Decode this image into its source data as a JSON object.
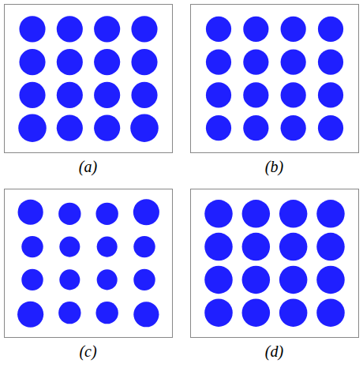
{
  "chart_data": [
    {
      "type": "scatter",
      "title": "(a)",
      "color": "#0000ff",
      "tick_labels": false,
      "xlim": [
        -4.5,
        4.5
      ],
      "ylim": [
        -4.5,
        4.5
      ],
      "x": [
        -3,
        -1,
        1,
        3,
        -3,
        -1,
        1,
        3,
        -3,
        -1,
        1,
        3,
        -3,
        -1,
        1,
        3
      ],
      "y": [
        3,
        3,
        3,
        3,
        1,
        1,
        1,
        1,
        -1,
        -1,
        -1,
        -1,
        -3,
        -3,
        -3,
        -3
      ],
      "spread": [
        0.7,
        0.7,
        0.7,
        0.7,
        0.7,
        0.7,
        0.7,
        0.7,
        0.7,
        0.7,
        0.7,
        0.7,
        0.75,
        0.7,
        0.7,
        0.75
      ]
    },
    {
      "type": "scatter",
      "title": "(b)",
      "color": "#0000ff",
      "tick_labels": false,
      "xlim": [
        -4.5,
        4.5
      ],
      "ylim": [
        -4.5,
        4.5
      ],
      "x": [
        -3,
        -1,
        1,
        3,
        -3,
        -1,
        1,
        3,
        -3,
        -1,
        1,
        3,
        -3,
        -1,
        1,
        3
      ],
      "y": [
        3,
        3,
        3,
        3,
        1,
        1,
        1,
        1,
        -1,
        -1,
        -1,
        -1,
        -3,
        -3,
        -3,
        -3
      ],
      "spread": [
        0.68,
        0.68,
        0.68,
        0.68,
        0.68,
        0.68,
        0.68,
        0.68,
        0.68,
        0.68,
        0.68,
        0.68,
        0.68,
        0.68,
        0.68,
        0.68
      ]
    },
    {
      "type": "scatter",
      "title": "(c)",
      "color": "#0000ff",
      "tick_labels": false,
      "xlim": [
        -4.5,
        4.5
      ],
      "ylim": [
        -4.5,
        4.5
      ],
      "x": [
        -3.1,
        -1,
        1,
        3.1,
        -3,
        -1,
        1,
        3,
        -3,
        -1,
        1,
        3,
        -3.1,
        -1,
        1,
        3.1
      ],
      "y": [
        3.1,
        3,
        3,
        3.1,
        1,
        1,
        1,
        1,
        -1,
        -1,
        -1,
        -1,
        -3.1,
        -3,
        -3,
        -3.1
      ],
      "spread": [
        0.68,
        0.6,
        0.6,
        0.7,
        0.58,
        0.55,
        0.55,
        0.58,
        0.58,
        0.55,
        0.55,
        0.58,
        0.7,
        0.6,
        0.6,
        0.68
      ]
    },
    {
      "type": "scatter",
      "title": "(d)",
      "color": "#0000ff",
      "tick_labels": false,
      "xlim": [
        -4.5,
        4.5
      ],
      "ylim": [
        -4.5,
        4.5
      ],
      "x": [
        -3,
        -1,
        1,
        3,
        -3,
        -1,
        1,
        3,
        -3,
        -1,
        1,
        3,
        -3,
        -1,
        1,
        3
      ],
      "y": [
        3,
        3,
        3,
        3,
        1,
        1,
        1,
        1,
        -1,
        -1,
        -1,
        -1,
        -3,
        -3,
        -3,
        -3
      ],
      "spread": [
        0.75,
        0.75,
        0.75,
        0.75,
        0.75,
        0.75,
        0.75,
        0.75,
        0.75,
        0.75,
        0.75,
        0.75,
        0.75,
        0.75,
        0.75,
        0.75
      ]
    }
  ]
}
